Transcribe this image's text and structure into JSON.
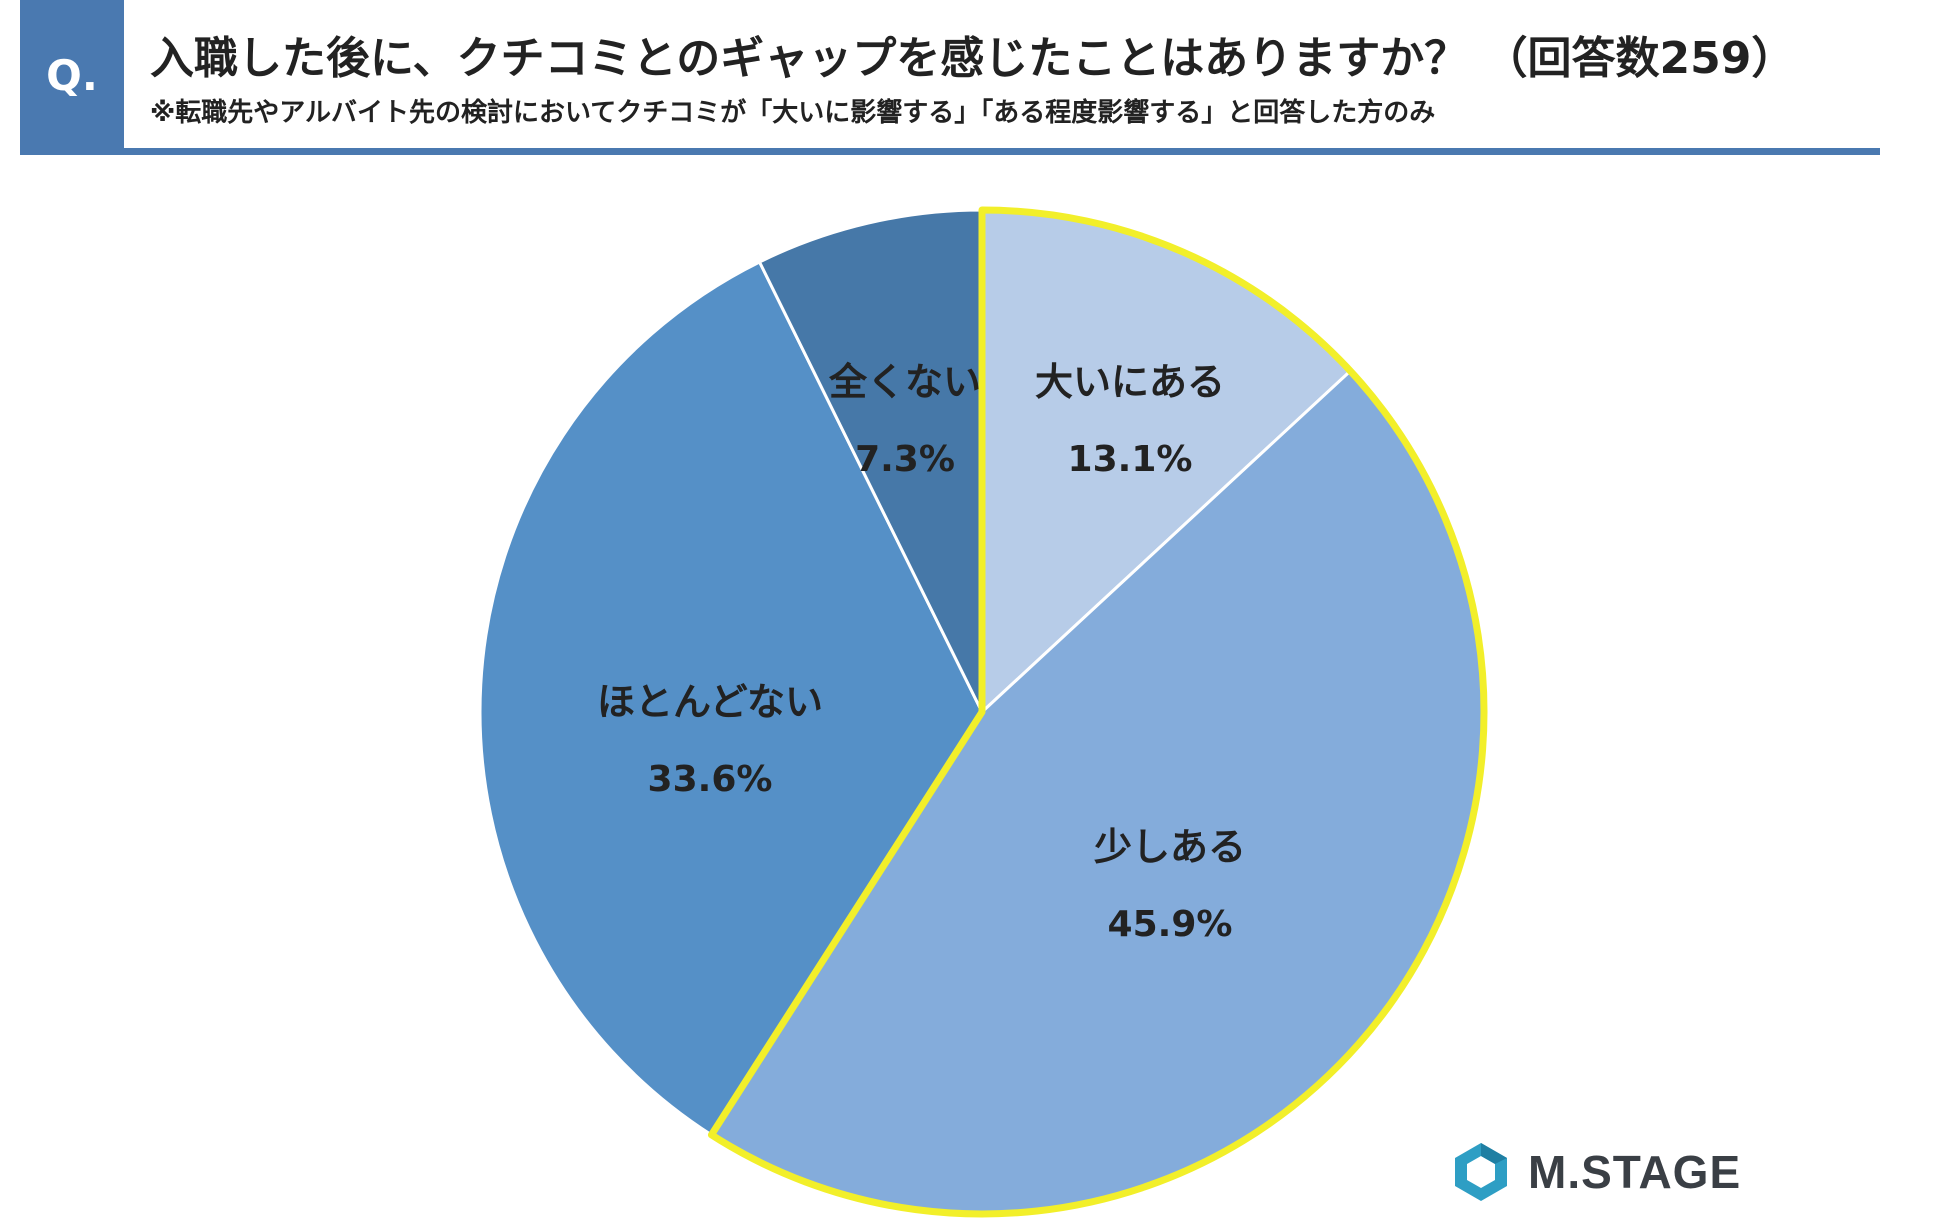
{
  "header": {
    "badge": "Q.",
    "title": "入職した後に、クチコミとのギャップを感じたことはありますか？ （回答数259）",
    "subtitle": "※転職先やアルバイト先の検討においてクチコミが「大いに影響する」「ある程度影響する」と回答した方のみ"
  },
  "chart_data": {
    "type": "pie",
    "title": "入職した後に、クチコミとのギャップを感じたことはありますか？ （回答数259）",
    "start": "12 o'clock, clockwise",
    "slices": [
      {
        "label": "大いにある",
        "value": 13.1,
        "value_label": "13.1%",
        "color": "#b7cce8",
        "highlighted": true
      },
      {
        "label": "少しある",
        "value": 45.9,
        "value_label": "45.9%",
        "color": "#84acdb",
        "highlighted": true
      },
      {
        "label": "ほとんどない",
        "value": 33.6,
        "value_label": "33.6%",
        "color": "#5590c7",
        "highlighted": false
      },
      {
        "label": "全くない",
        "value": 7.3,
        "value_label": "7.3%",
        "color": "#4678a8",
        "highlighted": false
      }
    ],
    "highlight_color": "#f2ef2a"
  },
  "logo": {
    "text": "M.STAGE",
    "icon": "hexagon-logo-icon",
    "color": "#2e9ec4"
  }
}
